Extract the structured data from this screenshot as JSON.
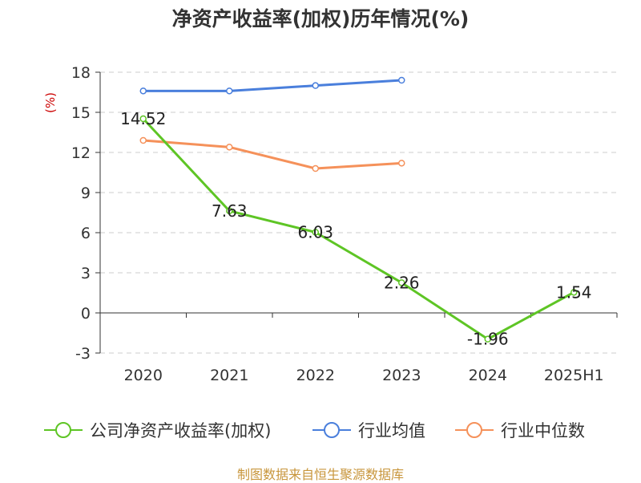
{
  "title": "净资产收益率(加权)历年情况(%)",
  "source": "制图数据来自恒生聚源数据库",
  "colors": {
    "company": "#5ec525",
    "industry_avg": "#4a7fdc",
    "industry_median": "#f5915a"
  },
  "chart_data": {
    "type": "line",
    "title": "净资产收益率(加权)历年情况(%)",
    "xlabel": "",
    "ylabel": "(%)",
    "categories": [
      "2020",
      "2021",
      "2022",
      "2023",
      "2024",
      "2025H1"
    ],
    "ylim": [
      -3,
      18
    ],
    "yticks": [
      "18",
      "15",
      "12",
      "9",
      "6",
      "3",
      "0",
      "-3"
    ],
    "grid": true,
    "legend": "bottom",
    "series": [
      {
        "name": "公司净资产收益率(加权)",
        "color": "#5ec525",
        "values": [
          14.52,
          7.63,
          6.03,
          2.26,
          -1.96,
          1.54
        ],
        "labels": [
          "14.52",
          "7.63",
          "6.03",
          "2.26",
          "-1.96",
          "1.54"
        ]
      },
      {
        "name": "行业均值",
        "color": "#4a7fdc",
        "values": [
          16.6,
          16.6,
          17.0,
          17.4,
          null,
          null
        ]
      },
      {
        "name": "行业中位数",
        "color": "#f5915a",
        "values": [
          12.9,
          12.4,
          10.8,
          11.2,
          null,
          null
        ]
      }
    ]
  }
}
